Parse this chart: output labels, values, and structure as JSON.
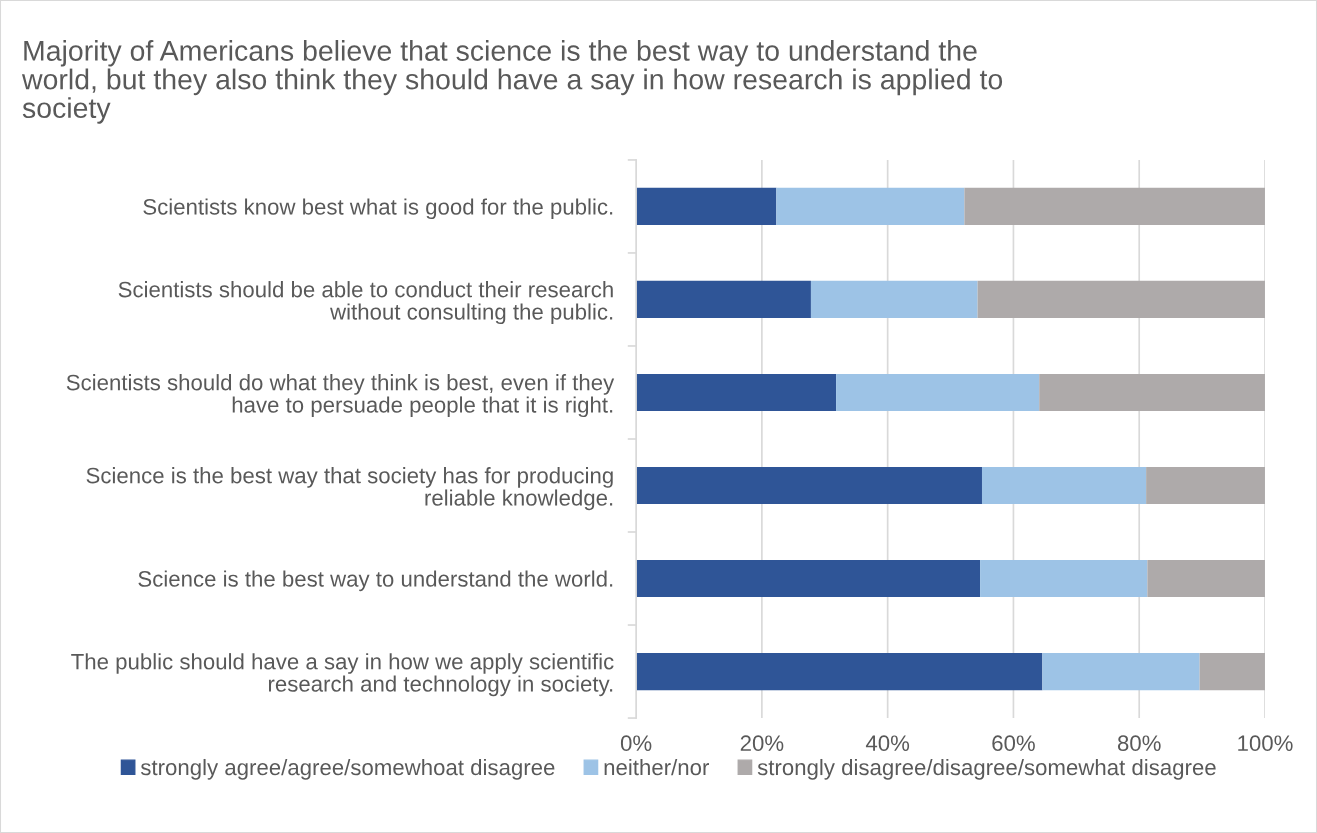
{
  "chart_data": {
    "type": "bar",
    "orientation": "horizontal",
    "stacked": true,
    "title": "Majority of Americans believe that science is the best way to understand the\nworld, but they also think they should have a say in how research is applied to\nsociety",
    "categories": [
      "Scientists know best what is good for the public.",
      "Scientists should be able to conduct their research\nwithout consulting the public.",
      "Scientists should do what they think is best, even if they\nhave to persuade people that it is right.",
      "Science is the best way that society has for producing\nreliable knowledge.",
      "Science is the best way to understand the world.",
      "The public should have a say in how we apply scientific\nresearch and technology in society."
    ],
    "series": [
      {
        "name": "strongly agree/agree/somewhoat disagree",
        "color": "#2f5597",
        "values": [
          22.3,
          27.8,
          31.8,
          55.0,
          54.7,
          64.6
        ]
      },
      {
        "name": "neither/nor",
        "color": "#9dc3e6",
        "values": [
          29.9,
          26.5,
          32.3,
          26.1,
          26.6,
          25.0
        ]
      },
      {
        "name": "strongly disagree/disagree/somewhat disagree",
        "color": "#aeaaaa",
        "values": [
          47.8,
          45.7,
          35.9,
          18.9,
          18.7,
          10.4
        ]
      }
    ],
    "xlim": [
      0,
      100
    ],
    "xticks": [
      {
        "value": 0,
        "label": "0%"
      },
      {
        "value": 20,
        "label": "20%"
      },
      {
        "value": 40,
        "label": "40%"
      },
      {
        "value": 60,
        "label": "60%"
      },
      {
        "value": 80,
        "label": "80%"
      },
      {
        "value": 100,
        "label": "100%"
      }
    ],
    "grid": "x",
    "legend": "bottom"
  }
}
